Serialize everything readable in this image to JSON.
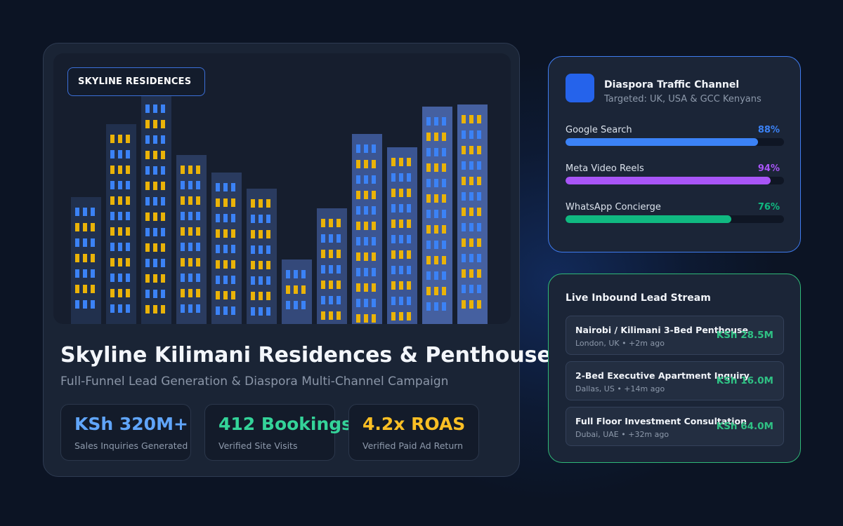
{
  "colors": {
    "accent_blue": "#3b82f6",
    "accent_green": "#34d399",
    "accent_purple": "#a855f7",
    "accent_gold": "#fbbf24",
    "window_blue": "#3b82f6",
    "window_gold": "#eab308"
  },
  "hero": {
    "label": "SKYLINE RESIDENCES",
    "illustration": "city-skyline-illustration"
  },
  "property": {
    "title": "Skyline Kilimani Residences & Penthouses",
    "subtitle": "Full-Funnel Lead Generation & Diaspora Multi-Channel Campaign"
  },
  "stats": [
    {
      "value": "KSh 320M+",
      "caption": "Sales Inquiries Generated",
      "color": "#60a5fa"
    },
    {
      "value": "412 Bookings",
      "caption": "Verified Site Visits",
      "color": "#34d399"
    },
    {
      "value": "4.2x ROAS",
      "caption": "Verified Paid Ad Return",
      "color": "#fbbf24"
    }
  ],
  "traffic": {
    "icon": "square-icon",
    "title": "Diaspora Traffic Channel",
    "subtitle": "Targeted: UK, USA & GCC Kenyans",
    "channels": [
      {
        "label": "Google Search",
        "percent_text": "88%",
        "percent": 0.88,
        "color": "#3b82f6"
      },
      {
        "label": "Meta Video Reels",
        "percent_text": "94%",
        "percent": 0.94,
        "color": "#a855f7"
      },
      {
        "label": "WhatsApp Concierge",
        "percent_text": "76%",
        "percent": 0.76,
        "color": "#10b981"
      }
    ]
  },
  "leads": {
    "title": "Live Inbound Lead Stream",
    "items": [
      {
        "name": "Nairobi / Kilimani 3-Bed Penthouse",
        "meta": "London, UK • +2m ago",
        "amount": "KSh 28.5M"
      },
      {
        "name": "2-Bed Executive Apartment Inquiry",
        "meta": "Dallas, US • +14m ago",
        "amount": "KSh 16.0M"
      },
      {
        "name": "Full Floor Investment Consultation",
        "meta": "Dubai, UAE • +32m ago",
        "amount": "KSh 64.0M"
      }
    ]
  }
}
